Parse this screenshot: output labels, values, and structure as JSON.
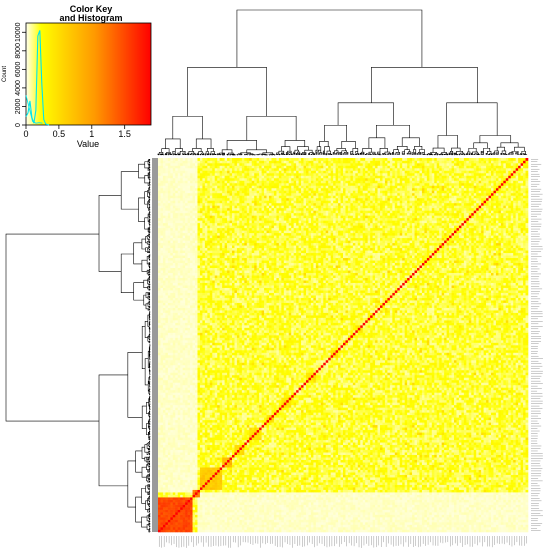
{
  "chart_data": {
    "type": "heatmap",
    "colorkey": {
      "title_line1": "Color Key",
      "title_line2": "and Histogram",
      "xlabel": "Value",
      "ylabel": "Count",
      "x_ticks": [
        "0",
        "0.5",
        "1",
        "1.5"
      ],
      "y_ticks": [
        "0",
        "2000",
        "4000",
        "6000",
        "8000",
        "10000"
      ],
      "xlim": [
        0,
        1.9
      ],
      "ylim": [
        0,
        11000
      ],
      "colors": [
        "#fffff0",
        "#ffff00",
        "#ff9900",
        "#ff0000"
      ],
      "histogram": {
        "x": [
          0,
          0.03,
          0.06,
          0.09,
          0.12,
          0.15,
          0.18,
          0.21,
          0.24,
          0.27,
          0.3,
          0.35
        ],
        "count": [
          900,
          1300,
          2600,
          800,
          200,
          1600,
          9600,
          10200,
          4500,
          600,
          100,
          0
        ]
      },
      "density": {
        "x": [
          0,
          0.05,
          0.1,
          0.15,
          0.2,
          0.25
        ],
        "count": [
          3200,
          1800,
          400,
          200,
          250,
          200
        ]
      }
    },
    "matrix": {
      "n": 150,
      "diagonal_value": 1.9,
      "background_value": 0.18,
      "dendrogram": "hierarchical clustering on rows and columns",
      "blocks": [
        {
          "start": 0,
          "size": 14,
          "value": 1.5
        },
        {
          "start": 14,
          "size": 3,
          "value": 1.2
        },
        {
          "start": 17,
          "size": 9,
          "value": 0.65
        },
        {
          "start": 26,
          "size": 4,
          "value": 0.8
        },
        {
          "start": 31,
          "size": 4,
          "value": 0.5
        },
        {
          "start": 37,
          "size": 5,
          "value": 0.45
        },
        {
          "start": 44,
          "size": 3,
          "value": 0.5
        },
        {
          "start": 50,
          "size": 4,
          "value": 0.45
        },
        {
          "start": 60,
          "size": 4,
          "value": 0.4
        },
        {
          "start": 70,
          "size": 3,
          "value": 0.45
        },
        {
          "start": 80,
          "size": 3,
          "value": 0.35
        }
      ],
      "pale_band_columns": [
        0,
        16
      ],
      "pale_band_rows": [
        0,
        16
      ],
      "noise": 0.22
    }
  }
}
